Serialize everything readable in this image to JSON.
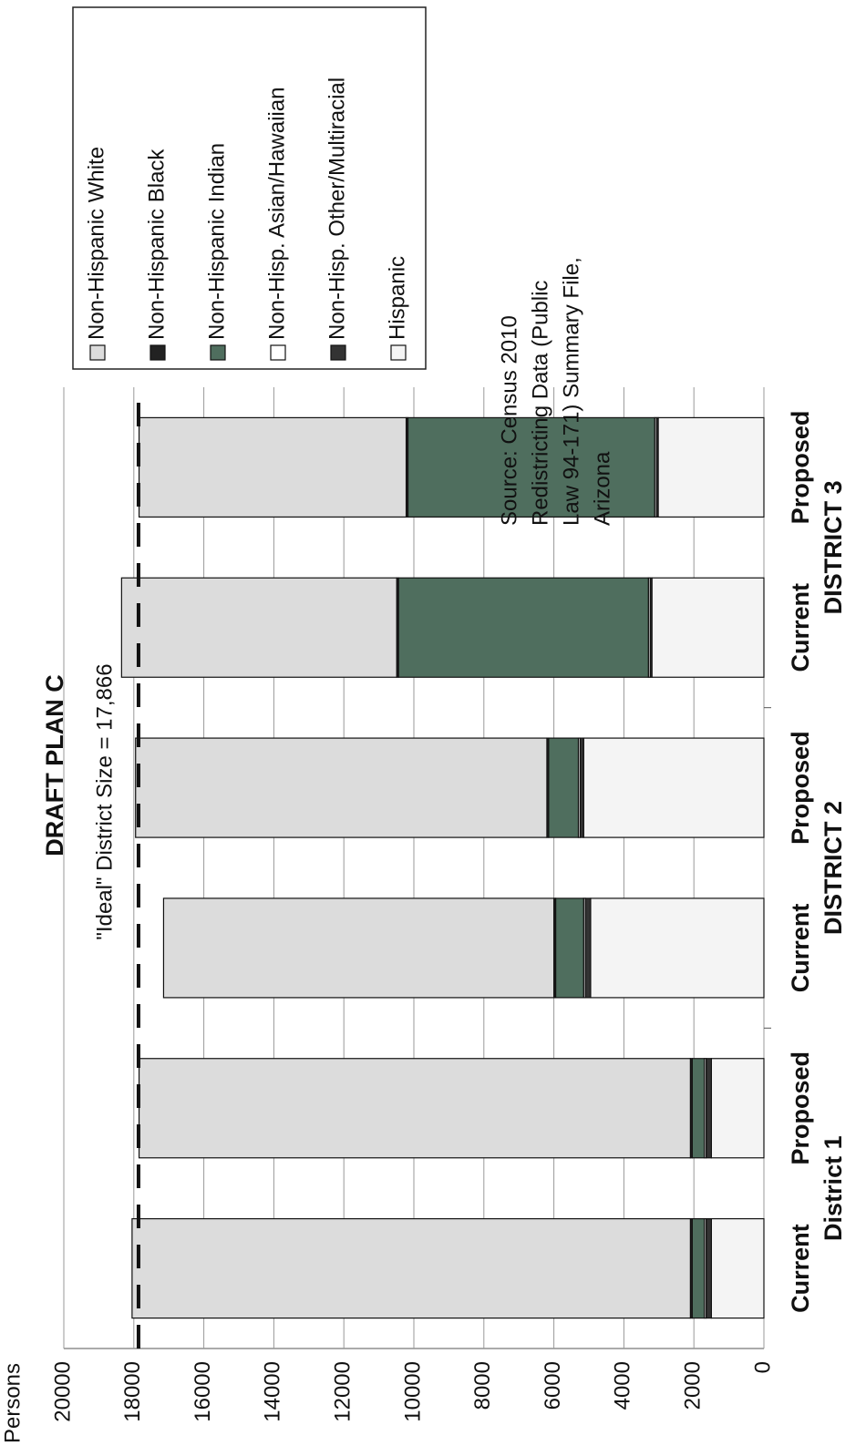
{
  "chart_data": {
    "type": "stacked-bar",
    "title": "DRAFT PLAN C",
    "y_label": "Persons",
    "annotation": "\"Ideal\" District Size = 17,866",
    "reference_value": 17866,
    "source": [
      "Source:  Census 2010",
      "Redistricting Data (Public",
      "Law 94-171) Summary File,",
      "Arizona"
    ],
    "categories": [
      "Current",
      "Proposed",
      "Current",
      "Proposed",
      "Current",
      "Proposed"
    ],
    "groups": [
      "District 1",
      "DISTRICT 2",
      "DISTRICT 3"
    ],
    "series": [
      {
        "name": "Hispanic",
        "color": "#f4f4f4",
        "values": [
          1500,
          1500,
          4950,
          5150,
          3200,
          3020
        ]
      },
      {
        "name": "Non-Hisp. Other/Multiracial",
        "color": "#333333",
        "values": [
          150,
          150,
          150,
          100,
          50,
          50
        ]
      },
      {
        "name": "Non-Hisp. Asian/Hawaiian",
        "color": "#ffffff",
        "values": [
          50,
          50,
          50,
          50,
          50,
          50
        ]
      },
      {
        "name": "Non-Hispanic Indian",
        "color": "#4f6e5e",
        "values": [
          350,
          350,
          800,
          850,
          7140,
          7050
        ]
      },
      {
        "name": "Non-Hispanic Black",
        "color": "#222222",
        "values": [
          50,
          50,
          50,
          50,
          50,
          50
        ]
      },
      {
        "name": "Non-Hispanic White",
        "color": "#dcdcdc",
        "values": [
          15950,
          15750,
          11150,
          11750,
          7860,
          7630
        ]
      }
    ],
    "ylim": [
      0,
      20000
    ],
    "yticks": [
      0,
      2000,
      4000,
      6000,
      8000,
      10000,
      12000,
      14000,
      16000,
      18000,
      20000
    ],
    "grid": true
  }
}
